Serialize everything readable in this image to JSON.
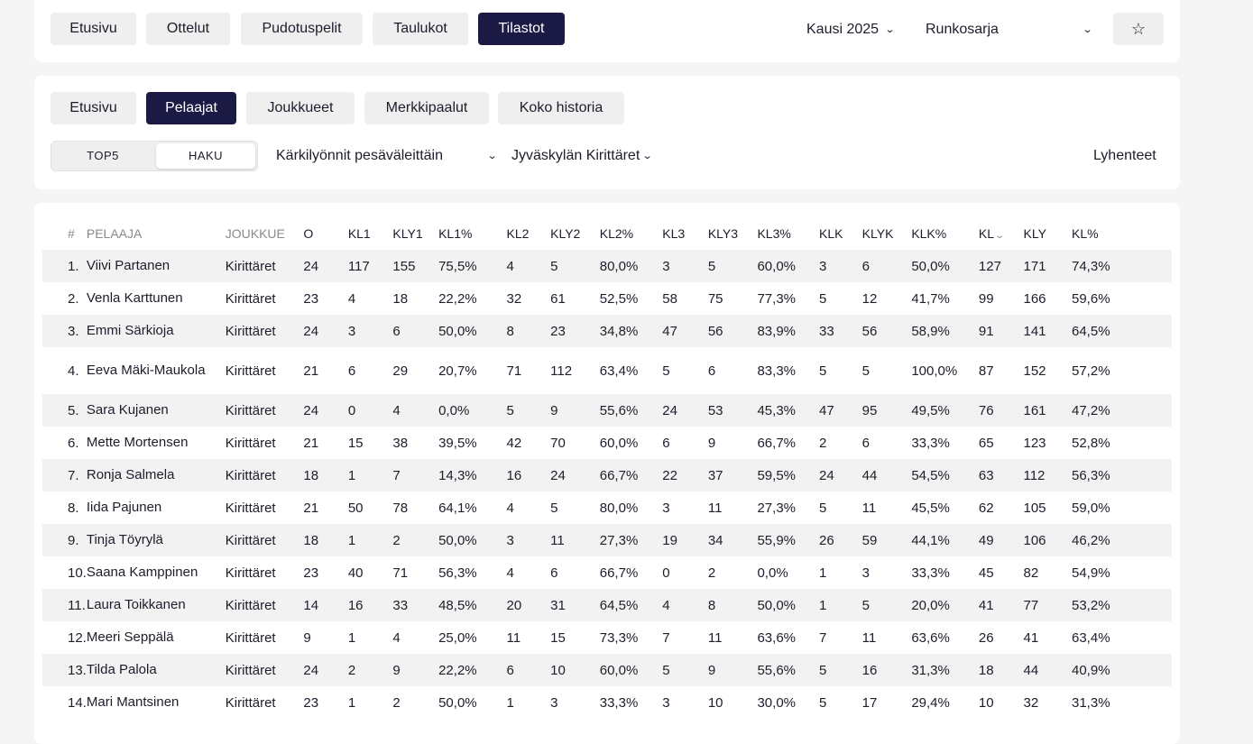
{
  "top_nav": {
    "tabs": [
      "Etusivu",
      "Ottelut",
      "Pudotuspelit",
      "Taulukot",
      "Tilastot"
    ],
    "active": "Tilastot",
    "season_select": "Kausi 2025",
    "series_select": "Runkosarja",
    "favorite_icon": "star-icon"
  },
  "sub_nav": {
    "tabs": [
      "Etusivu",
      "Pelaajat",
      "Joukkueet",
      "Merkkipaalut",
      "Koko historia"
    ],
    "active": "Pelaajat",
    "toggle": {
      "top5": "TOP5",
      "haku": "HAKU",
      "selected": "HAKU"
    },
    "stat_select": "Kärkilyönnit pesäväleittäin",
    "team_select": "Jyväskylän Kirittäret",
    "abbrev_link": "Lyhenteet"
  },
  "table": {
    "columns": [
      "#",
      "PELAAJA",
      "JOUKKUE",
      "O",
      "KL1",
      "KLY1",
      "KL1%",
      "KL2",
      "KLY2",
      "KL2%",
      "KL3",
      "KLY3",
      "KL3%",
      "KLK",
      "KLYK",
      "KLK%",
      "KL",
      "KLY",
      "KL%"
    ],
    "sorted_column": "KL",
    "sort_icon": "chevron-down-icon",
    "rows": [
      [
        "1.",
        "Viivi Partanen",
        "Kirittäret",
        "24",
        "117",
        "155",
        "75,5%",
        "4",
        "5",
        "80,0%",
        "3",
        "5",
        "60,0%",
        "3",
        "6",
        "50,0%",
        "127",
        "171",
        "74,3%"
      ],
      [
        "2.",
        "Venla Karttunen",
        "Kirittäret",
        "23",
        "4",
        "18",
        "22,2%",
        "32",
        "61",
        "52,5%",
        "58",
        "75",
        "77,3%",
        "5",
        "12",
        "41,7%",
        "99",
        "166",
        "59,6%"
      ],
      [
        "3.",
        "Emmi Särkioja",
        "Kirittäret",
        "24",
        "3",
        "6",
        "50,0%",
        "8",
        "23",
        "34,8%",
        "47",
        "56",
        "83,9%",
        "33",
        "56",
        "58,9%",
        "91",
        "141",
        "64,5%"
      ],
      [
        "4.",
        "Eeva Mäki-Maukola",
        "Kirittäret",
        "21",
        "6",
        "29",
        "20,7%",
        "71",
        "112",
        "63,4%",
        "5",
        "6",
        "83,3%",
        "5",
        "5",
        "100,0%",
        "87",
        "152",
        "57,2%"
      ],
      [
        "5.",
        "Sara Kujanen",
        "Kirittäret",
        "24",
        "0",
        "4",
        "0,0%",
        "5",
        "9",
        "55,6%",
        "24",
        "53",
        "45,3%",
        "47",
        "95",
        "49,5%",
        "76",
        "161",
        "47,2%"
      ],
      [
        "6.",
        "Mette Mortensen",
        "Kirittäret",
        "21",
        "15",
        "38",
        "39,5%",
        "42",
        "70",
        "60,0%",
        "6",
        "9",
        "66,7%",
        "2",
        "6",
        "33,3%",
        "65",
        "123",
        "52,8%"
      ],
      [
        "7.",
        "Ronja Salmela",
        "Kirittäret",
        "18",
        "1",
        "7",
        "14,3%",
        "16",
        "24",
        "66,7%",
        "22",
        "37",
        "59,5%",
        "24",
        "44",
        "54,5%",
        "63",
        "112",
        "56,3%"
      ],
      [
        "8.",
        "Iida Pajunen",
        "Kirittäret",
        "21",
        "50",
        "78",
        "64,1%",
        "4",
        "5",
        "80,0%",
        "3",
        "11",
        "27,3%",
        "5",
        "11",
        "45,5%",
        "62",
        "105",
        "59,0%"
      ],
      [
        "9.",
        "Tinja Töyrylä",
        "Kirittäret",
        "18",
        "1",
        "2",
        "50,0%",
        "3",
        "11",
        "27,3%",
        "19",
        "34",
        "55,9%",
        "26",
        "59",
        "44,1%",
        "49",
        "106",
        "46,2%"
      ],
      [
        "10.",
        "Saana Kamppinen",
        "Kirittäret",
        "23",
        "40",
        "71",
        "56,3%",
        "4",
        "6",
        "66,7%",
        "0",
        "2",
        "0,0%",
        "1",
        "3",
        "33,3%",
        "45",
        "82",
        "54,9%"
      ],
      [
        "11.",
        "Laura Toikkanen",
        "Kirittäret",
        "14",
        "16",
        "33",
        "48,5%",
        "20",
        "31",
        "64,5%",
        "4",
        "8",
        "50,0%",
        "1",
        "5",
        "20,0%",
        "41",
        "77",
        "53,2%"
      ],
      [
        "12.",
        "Meeri Seppälä",
        "Kirittäret",
        "9",
        "1",
        "4",
        "25,0%",
        "11",
        "15",
        "73,3%",
        "7",
        "11",
        "63,6%",
        "7",
        "11",
        "63,6%",
        "26",
        "41",
        "63,4%"
      ],
      [
        "13.",
        "Tilda Palola",
        "Kirittäret",
        "24",
        "2",
        "9",
        "22,2%",
        "6",
        "10",
        "60,0%",
        "5",
        "9",
        "55,6%",
        "5",
        "16",
        "31,3%",
        "18",
        "44",
        "40,9%"
      ],
      [
        "14.",
        "Mari Mantsinen",
        "Kirittäret",
        "23",
        "1",
        "2",
        "50,0%",
        "1",
        "3",
        "33,3%",
        "3",
        "10",
        "30,0%",
        "5",
        "17",
        "29,4%",
        "10",
        "32",
        "31,3%"
      ]
    ]
  }
}
